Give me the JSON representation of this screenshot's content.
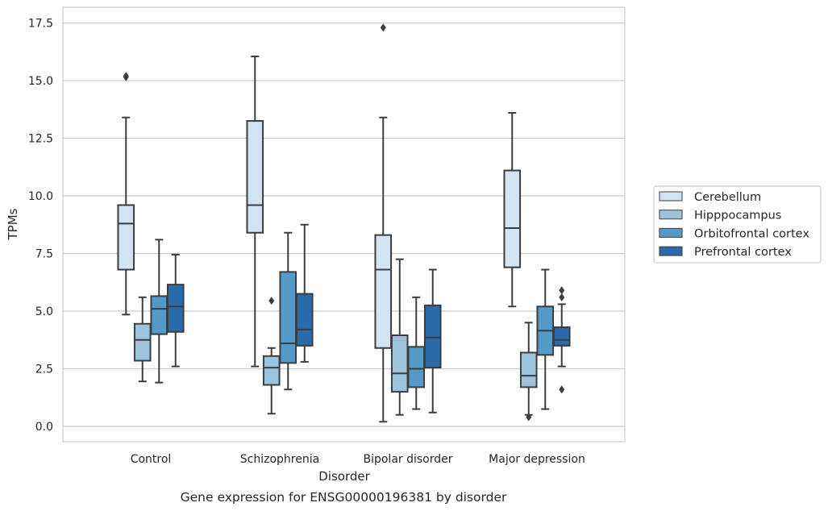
{
  "chart_data": {
    "type": "box",
    "xlabel": "Disorder",
    "ylabel": "TPMs",
    "caption": "Gene expression for ENSG00000196381 by disorder",
    "ylim": [
      -0.6,
      18.2
    ],
    "yticks": [
      "0.0",
      "2.5",
      "5.0",
      "7.5",
      "10.0",
      "12.5",
      "15.0",
      "17.5"
    ],
    "ytick_values": [
      0,
      2.5,
      5,
      7.5,
      10,
      12.5,
      15,
      17.5
    ],
    "grid": "horizontal",
    "legend_placement": "right",
    "categories": [
      "Control",
      "Schizophrenia",
      "Bipolar disorder",
      "Major depression"
    ],
    "series": [
      {
        "name": "Cerebellum",
        "color": "#d4e3f2",
        "boxes": [
          {
            "whislo": 4.85,
            "q1": 6.8,
            "med": 8.8,
            "q3": 9.6,
            "whishi": 13.4,
            "fliers": [
              15.15,
              15.2
            ]
          },
          {
            "whislo": 2.6,
            "q1": 8.4,
            "med": 9.6,
            "q3": 13.25,
            "whishi": 16.05,
            "fliers": []
          },
          {
            "whislo": 0.2,
            "q1": 3.4,
            "med": 6.8,
            "q3": 8.3,
            "whishi": 13.4,
            "fliers": [
              17.3
            ]
          },
          {
            "whislo": 5.2,
            "q1": 6.9,
            "med": 8.6,
            "q3": 11.1,
            "whishi": 13.6,
            "fliers": []
          }
        ]
      },
      {
        "name": "Hipppocampus",
        "color": "#9cc3dc",
        "boxes": [
          {
            "whislo": 1.95,
            "q1": 2.85,
            "med": 3.75,
            "q3": 4.45,
            "whishi": 5.6,
            "fliers": []
          },
          {
            "whislo": 0.55,
            "q1": 1.8,
            "med": 2.55,
            "q3": 3.05,
            "whishi": 3.4,
            "fliers": [
              5.45
            ]
          },
          {
            "whislo": 0.5,
            "q1": 1.5,
            "med": 2.3,
            "q3": 3.95,
            "whishi": 7.25,
            "fliers": []
          },
          {
            "whislo": 0.5,
            "q1": 1.7,
            "med": 2.2,
            "q3": 3.2,
            "whishi": 4.5,
            "fliers": [
              0.4
            ]
          }
        ]
      },
      {
        "name": "Orbitofrontal cortex",
        "color": "#5599c8",
        "boxes": [
          {
            "whislo": 1.9,
            "q1": 4.0,
            "med": 5.1,
            "q3": 5.65,
            "whishi": 8.1,
            "fliers": []
          },
          {
            "whislo": 1.6,
            "q1": 2.75,
            "med": 3.6,
            "q3": 6.7,
            "whishi": 8.4,
            "fliers": []
          },
          {
            "whislo": 0.75,
            "q1": 1.7,
            "med": 2.5,
            "q3": 3.45,
            "whishi": 5.6,
            "fliers": []
          },
          {
            "whislo": 0.75,
            "q1": 3.1,
            "med": 4.15,
            "q3": 5.2,
            "whishi": 6.8,
            "fliers": []
          }
        ]
      },
      {
        "name": "Prefrontal cortex",
        "color": "#2b6aa8",
        "boxes": [
          {
            "whislo": 2.6,
            "q1": 4.1,
            "med": 5.2,
            "q3": 6.15,
            "whishi": 7.45,
            "fliers": []
          },
          {
            "whislo": 2.8,
            "q1": 3.5,
            "med": 4.2,
            "q3": 5.75,
            "whishi": 8.75,
            "fliers": []
          },
          {
            "whislo": 0.6,
            "q1": 2.55,
            "med": 3.85,
            "q3": 5.25,
            "whishi": 6.8,
            "fliers": []
          },
          {
            "whislo": 2.6,
            "q1": 3.5,
            "med": 3.75,
            "q3": 4.3,
            "whishi": 5.3,
            "fliers": [
              5.6,
              5.9,
              1.6
            ]
          }
        ]
      }
    ]
  }
}
